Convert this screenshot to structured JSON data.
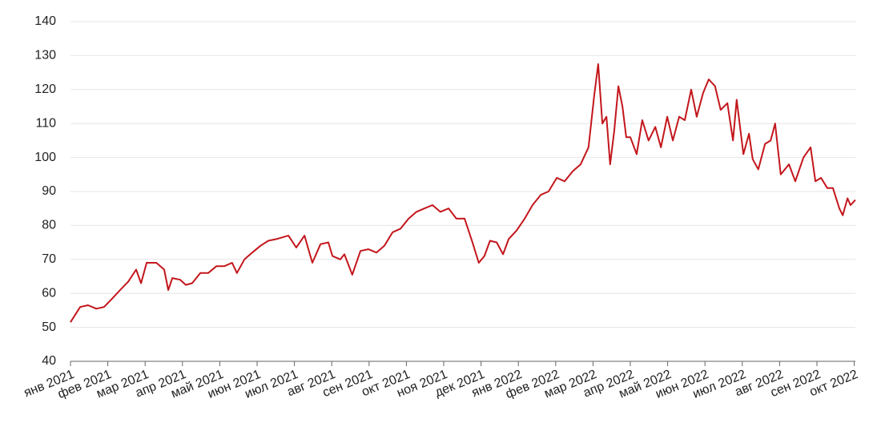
{
  "chart_data": {
    "type": "line",
    "x": [
      0,
      0.26,
      0.47,
      0.69,
      0.9,
      1.12,
      1.33,
      1.55,
      1.76,
      1.89,
      2.04,
      2.3,
      2.51,
      2.62,
      2.73,
      2.94,
      3.09,
      3.26,
      3.48,
      3.69,
      3.91,
      4.12,
      4.33,
      4.46,
      4.66,
      4.87,
      5.09,
      5.3,
      5.52,
      5.84,
      6.05,
      6.27,
      6.48,
      6.7,
      6.91,
      7.02,
      7.23,
      7.34,
      7.55,
      7.77,
      7.98,
      8.2,
      8.41,
      8.63,
      8.84,
      9.06,
      9.27,
      9.48,
      9.7,
      9.91,
      10.13,
      10.34,
      10.56,
      10.77,
      10.94,
      11.09,
      11.24,
      11.42,
      11.59,
      11.74,
      11.95,
      12.17,
      12.38,
      12.6,
      12.81,
      13.03,
      13.24,
      13.46,
      13.67,
      13.88,
      14.03,
      14.14,
      14.25,
      14.36,
      14.46,
      14.57,
      14.68,
      14.79,
      14.89,
      15,
      15.17,
      15.32,
      15.49,
      15.67,
      15.82,
      15.99,
      16.14,
      16.31,
      16.46,
      16.63,
      16.78,
      16.95,
      17.1,
      17.27,
      17.42,
      17.6,
      17.75,
      17.85,
      18.03,
      18.18,
      18.28,
      18.43,
      18.61,
      18.76,
      18.88,
      19.03,
      19.25,
      19.42,
      19.64,
      19.83,
      19.96,
      20.11,
      20.28,
      20.43,
      20.6,
      20.69,
      20.82,
      20.9,
      21.03
    ],
    "values": [
      51.5,
      56,
      56.5,
      55.5,
      56,
      58.5,
      61,
      63.5,
      67,
      63,
      69,
      69,
      67,
      61,
      64.5,
      64,
      62.5,
      63,
      66,
      66,
      68,
      68,
      69,
      66,
      70,
      72,
      74,
      75.5,
      76,
      77,
      73.5,
      77,
      69,
      74.5,
      75,
      71,
      70,
      71.5,
      65.5,
      72.5,
      73,
      72,
      74,
      78,
      79,
      82,
      84,
      85,
      86,
      84,
      85,
      82,
      82,
      75,
      69,
      71,
      75.5,
      75,
      71.5,
      76,
      78.5,
      82,
      86,
      89,
      90,
      94,
      93,
      96,
      98,
      103,
      118,
      127.5,
      110,
      112,
      98,
      108,
      121,
      115,
      106,
      106,
      101,
      111,
      105,
      109,
      103,
      112,
      105,
      112,
      111,
      120,
      112,
      119,
      123,
      121,
      114,
      116,
      105,
      117,
      101,
      107,
      99.5,
      96.5,
      104,
      105,
      110,
      95,
      98,
      93,
      100,
      103,
      93,
      94,
      91,
      91,
      85,
      83,
      88,
      86,
      87.5
    ],
    "color": "#c3161c",
    "xlim": [
      0,
      21.03
    ],
    "xticks": [
      {
        "value": 0,
        "label": "янв 2021"
      },
      {
        "value": 1,
        "label": "фев 2021"
      },
      {
        "value": 2,
        "label": "мар 2021"
      },
      {
        "value": 3,
        "label": "апр 2021"
      },
      {
        "value": 4,
        "label": "май 2021"
      },
      {
        "value": 5,
        "label": "июн 2021"
      },
      {
        "value": 6,
        "label": "июл 2021"
      },
      {
        "value": 7,
        "label": "авг 2021"
      },
      {
        "value": 8,
        "label": "сен 2021"
      },
      {
        "value": 9,
        "label": "окт 2021"
      },
      {
        "value": 10,
        "label": "ноя 2021"
      },
      {
        "value": 11,
        "label": "дек 2021"
      },
      {
        "value": 12,
        "label": "янв 2022"
      },
      {
        "value": 13,
        "label": "фев 2022"
      },
      {
        "value": 14,
        "label": "мар 2022"
      },
      {
        "value": 15,
        "label": "апр 2022"
      },
      {
        "value": 16,
        "label": "май 2022"
      },
      {
        "value": 17,
        "label": "июн 2022"
      },
      {
        "value": 18,
        "label": "июл 2022"
      },
      {
        "value": 19,
        "label": "авг 2022"
      },
      {
        "value": 20,
        "label": "сен 2022"
      },
      {
        "value": 21,
        "label": "окт 2022"
      }
    ],
    "ylim": [
      40,
      140
    ],
    "yticks": [
      40,
      50,
      60,
      70,
      80,
      90,
      100,
      110,
      120,
      130,
      140
    ],
    "grid": true
  }
}
